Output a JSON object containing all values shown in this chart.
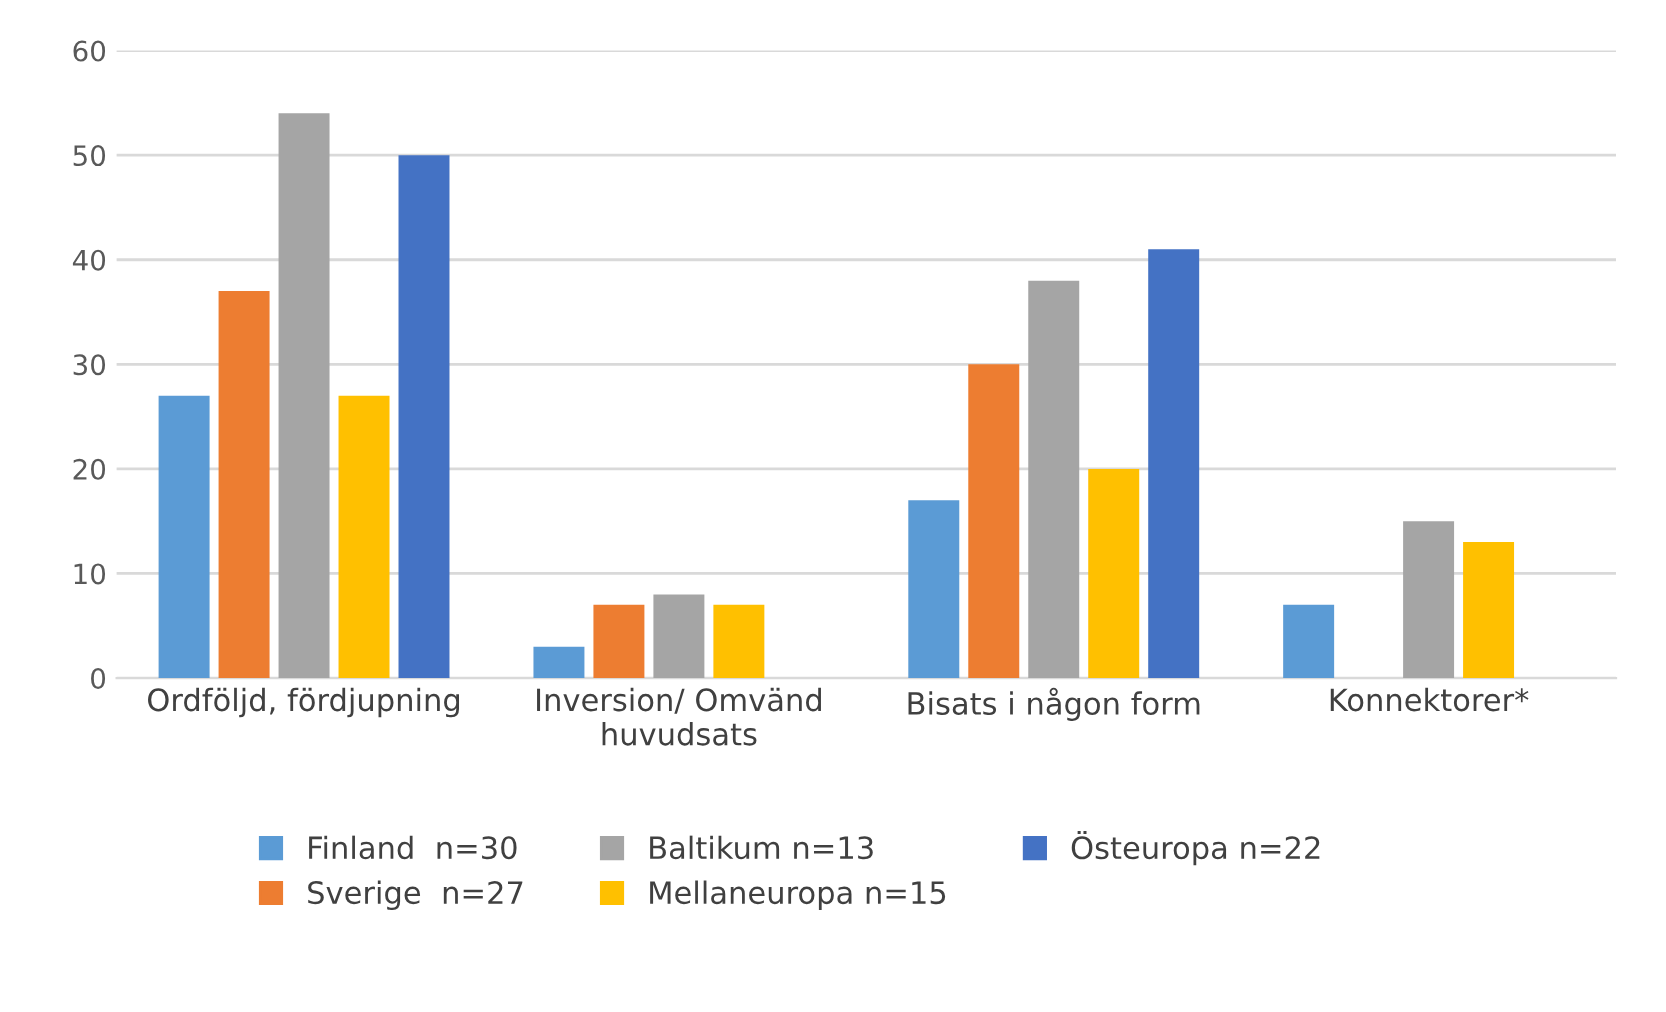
{
  "chart_data": {
    "type": "bar",
    "categories": [
      "Ordföljd, fördjupning",
      "Inversion/ Omvänd\nhuvudsats",
      "Bisats i någon form",
      "Konnektorer*"
    ],
    "series": [
      {
        "name": "Finland  n=30",
        "color": "#5b9bd5",
        "values": [
          27,
          3,
          17,
          7
        ]
      },
      {
        "name": "Sverige  n=27",
        "color": "#ed7d31",
        "values": [
          37,
          7,
          30,
          0
        ]
      },
      {
        "name": "Baltikum n=13",
        "color": "#a5a5a5",
        "values": [
          54,
          8,
          38,
          15
        ]
      },
      {
        "name": "Mellaneuropa n=15",
        "color": "#ffc000",
        "values": [
          27,
          7,
          20,
          13
        ]
      },
      {
        "name": "Östeuropa n=22",
        "color": "#4472c4",
        "values": [
          50,
          0,
          41,
          0
        ]
      }
    ],
    "ylim": [
      0,
      60
    ],
    "yticks": [
      0,
      10,
      20,
      30,
      40,
      50,
      60
    ],
    "grid": "y",
    "legend": "bottom"
  }
}
